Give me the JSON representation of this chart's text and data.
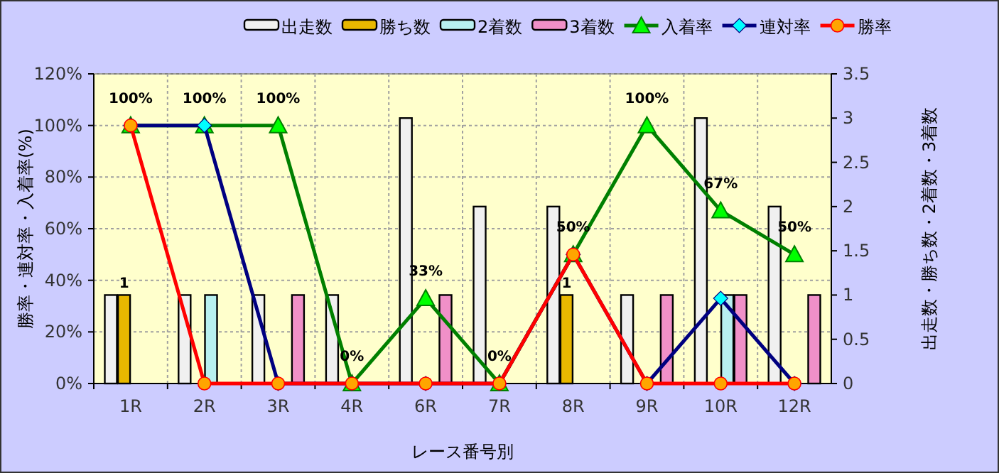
{
  "chart_data": {
    "type": "bar",
    "xlabel": "レース番号別",
    "ylabel": "勝率・連対率・入着率(%)",
    "y2label": "出走数・勝ち数・2着数・3着数",
    "categories": [
      "1R",
      "2R",
      "3R",
      "4R",
      "6R",
      "7R",
      "8R",
      "9R",
      "10R",
      "12R"
    ],
    "ylim": [
      0,
      120
    ],
    "yticks": [
      {
        "value": 0,
        "label": "0%"
      },
      {
        "value": 20,
        "label": "20%"
      },
      {
        "value": 40,
        "label": "40%"
      },
      {
        "value": 60,
        "label": "60%"
      },
      {
        "value": 80,
        "label": "80%"
      },
      {
        "value": 100,
        "label": "100%"
      },
      {
        "value": 120,
        "label": "120%"
      }
    ],
    "y2lim": [
      0,
      3.5
    ],
    "y2ticks": [
      0,
      0.5,
      1,
      1.5,
      2,
      2.5,
      3,
      3.5
    ],
    "grid": true,
    "legend": "top",
    "series": [
      {
        "name": "出走数",
        "type": "bar",
        "axis": "y2",
        "color": "#f0f0f0",
        "values": [
          1,
          1,
          1,
          1,
          3,
          2,
          2,
          1,
          3,
          2
        ]
      },
      {
        "name": "勝ち数",
        "type": "bar",
        "axis": "y2",
        "color": "#e8b800",
        "values": [
          1,
          0,
          0,
          0,
          0,
          0,
          1,
          0,
          0,
          0
        ],
        "value_labels": [
          "1",
          null,
          null,
          null,
          null,
          null,
          "1",
          null,
          null,
          null
        ]
      },
      {
        "name": "2着数",
        "type": "bar",
        "axis": "y2",
        "color": "#b8f0f0",
        "values": [
          0,
          1,
          0,
          0,
          0,
          0,
          0,
          0,
          1,
          0
        ]
      },
      {
        "name": "3着数",
        "type": "bar",
        "axis": "y2",
        "color": "#f090c8",
        "values": [
          0,
          0,
          1,
          0,
          1,
          0,
          0,
          1,
          1,
          1
        ]
      },
      {
        "name": "入着率",
        "type": "line",
        "color": "#008000",
        "marker": "triangle",
        "values": [
          100,
          100,
          100,
          0,
          33,
          0,
          50,
          100,
          67,
          50
        ],
        "value_labels": [
          "100%",
          "100%",
          "100%",
          "0%",
          "33%",
          "0%",
          "50%",
          "100%",
          "67%",
          "50%"
        ]
      },
      {
        "name": "連対率",
        "type": "line",
        "color": "#000080",
        "marker": "diamond",
        "values": [
          100,
          100,
          0,
          0,
          0,
          0,
          50,
          0,
          33,
          0
        ]
      },
      {
        "name": "勝率",
        "type": "line",
        "color": "#ff0000",
        "marker": "circle",
        "values": [
          100,
          0,
          0,
          0,
          0,
          0,
          50,
          0,
          0,
          0
        ]
      }
    ]
  }
}
